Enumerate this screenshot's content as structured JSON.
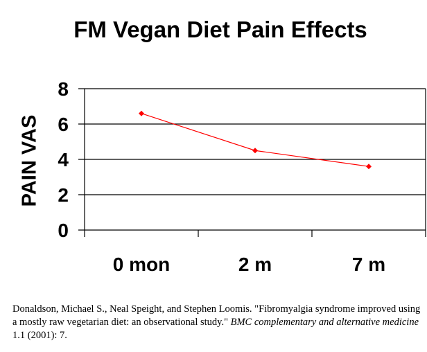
{
  "chart_data": {
    "type": "line",
    "title": "FM Vegan Diet Pain Effects",
    "ylabel": "PAIN VAS",
    "xlabel": "",
    "categories": [
      "0 mon",
      "2 m",
      "7 m"
    ],
    "series": [
      {
        "values": [
          6.6,
          4.5,
          3.6
        ],
        "color": "#ff0000",
        "marker": "diamond"
      }
    ],
    "ylim": [
      0,
      8
    ],
    "yticks": [
      0,
      2,
      4,
      6,
      8
    ],
    "grid": true,
    "legend": "none"
  },
  "reference": {
    "authors_title": "Donaldson, Michael S., Neal Speight, and Stephen Loomis. \"Fibromyalgia syndrome improved using a mostly raw vegetarian diet: an observational study.\" ",
    "journal": "BMC complementary and alternative medicine",
    "details": " 1.1 (2001): 7."
  }
}
